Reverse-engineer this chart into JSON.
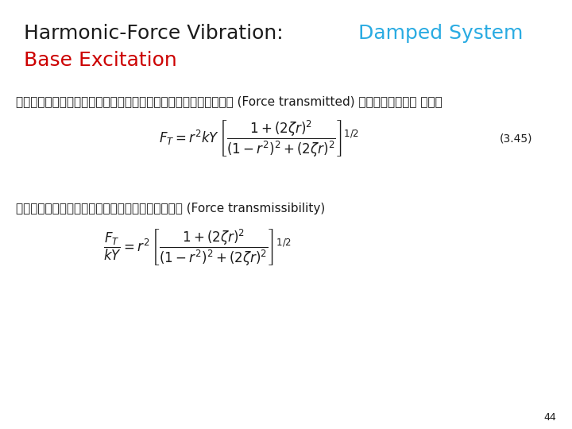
{
  "title_black": "Harmonic-Force Vibration:",
  "title_cyan": "Damped System",
  "title_red": "Base Excitation",
  "bg_color": "#ffffff",
  "black_color": "#1a1a1a",
  "cyan_color": "#29abe2",
  "red_color": "#cc0000",
  "thai_text1": "ขนาดการสั่นสูงสุดของแรงส่งผ่าน (Force transmitted) ไปยังมวล คือ",
  "thai_text2": "ความสามารถการส่งผ่านแรง (Force transmissibility)",
  "eq_number": "(3.45)",
  "page_number": "44",
  "title_fontsize": 18,
  "subtitle_fontsize": 18,
  "thai_fontsize": 11,
  "eq_number_fontsize": 10,
  "eq1_fontsize": 12,
  "eq2_fontsize": 12,
  "page_fontsize": 9
}
